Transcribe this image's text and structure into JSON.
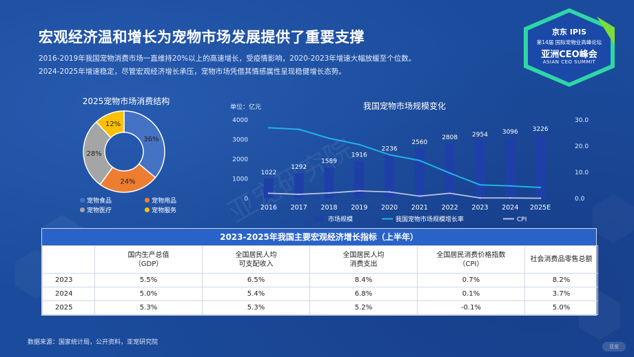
{
  "header": {
    "title": "宏观经济温和增长为宠物市场发展提供了重要支撑",
    "desc_line1": "2016-2019年我国宠物消费市场一直维持20%以上的高速增长，受疫情影响，2020-2023年增速大幅放缓至个位数。",
    "desc_line2": "2024-2025年增速稳定，尽管宏观经济增长承压，宠物市场凭借其情感属性呈现稳健增长态势。"
  },
  "badge": {
    "line1": "京东 IPIS",
    "line2": "第14届 国际宠物业高峰论坛",
    "line3": "亚洲CEO峰会",
    "line4": "ASIAN CEO SUMMIT",
    "accent": "#2fd6a6",
    "accent2": "#7bdc3a"
  },
  "watermark": "亚宠研究院",
  "corner_logo": "亚宠",
  "chart_data": [
    {
      "type": "pie",
      "title": "2025宠物市场消费结构",
      "donut": true,
      "categories": [
        "宠物食品",
        "宠物用品",
        "宠物医疗",
        "宠物服务"
      ],
      "values": [
        36,
        24,
        28,
        12
      ],
      "labels": [
        "36%",
        "24%",
        "28%",
        "12%"
      ],
      "colors": [
        "#4472c4",
        "#ed7d31",
        "#a5a5a5",
        "#ffc000"
      ],
      "legend": "bottom"
    },
    {
      "type": "bar",
      "title": "我国宠物市场规模变化",
      "unit_label": "单位：亿元",
      "categories": [
        "2016",
        "2017",
        "2018",
        "2019",
        "2020",
        "2021",
        "2022",
        "2023",
        "2024",
        "2025E"
      ],
      "ylim": [
        0,
        4000
      ],
      "yticks": [
        0,
        1000,
        2000,
        3000,
        4000
      ],
      "y2lim": [
        0,
        30
      ],
      "y2ticks": [
        "0.0",
        "10.0",
        "20.0",
        "30.0"
      ],
      "legend": "bottom",
      "series": [
        {
          "name": "市场规模",
          "type": "bar",
          "axis": "left",
          "values": [
            1022,
            1292,
            1589,
            1916,
            2236,
            2560,
            2808,
            2954,
            3096,
            3226
          ],
          "color": "#1f3fa8"
        },
        {
          "name": "我国宠物市场规模增长率",
          "type": "line",
          "axis": "right",
          "values": [
            27.0,
            26.4,
            23.0,
            20.6,
            16.7,
            14.5,
            9.7,
            5.2,
            4.8,
            4.2
          ],
          "color": "#1fb3e8"
        },
        {
          "name": "CPI",
          "type": "line",
          "axis": "right",
          "values": [
            2.0,
            1.6,
            2.1,
            2.9,
            2.5,
            0.9,
            2.0,
            0.2,
            0.2,
            0.1
          ],
          "color": "#b8c4e0"
        }
      ]
    }
  ],
  "table": {
    "caption": "2023-2025年我国主要宏观经济增长指标（上半年）",
    "headers": [
      [
        "",
        ""
      ],
      [
        "国内生产总值",
        "（GDP）"
      ],
      [
        "全国居民人均",
        "可支配收入"
      ],
      [
        "全国居民人均",
        "消费支出"
      ],
      [
        "全国居民消费价格指数",
        "（CPI）"
      ],
      [
        "社会消费品零售总额",
        ""
      ]
    ],
    "rows": [
      [
        "2023",
        "5.5%",
        "6.5%",
        "8.4%",
        "0.7%",
        "8.2%"
      ],
      [
        "2024",
        "5.0%",
        "5.4%",
        "6.8%",
        "0.1%",
        "3.7%"
      ],
      [
        "2025",
        "5.3%",
        "5.3%",
        "5.2%",
        "-0.1%",
        "5.0%"
      ]
    ]
  },
  "source": "数据来源：国家统计局，公开资料，亚宠研究院"
}
